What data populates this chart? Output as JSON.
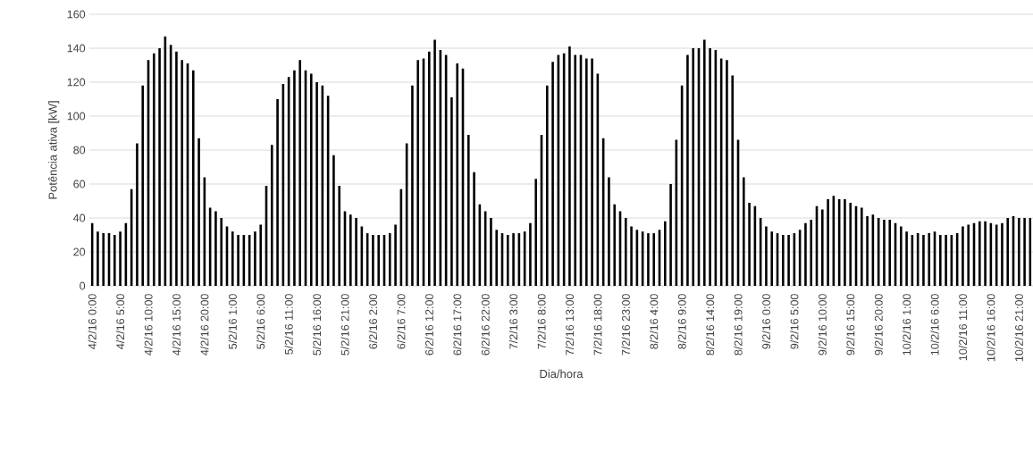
{
  "chart_data": {
    "type": "bar",
    "xlabel": "Dia/hora",
    "ylabel": "Potência ativa [kW]",
    "categories": [
      "4/2/16 0:00",
      null,
      null,
      null,
      null,
      "4/2/16 5:00",
      null,
      null,
      null,
      null,
      "4/2/16 10:00",
      null,
      null,
      null,
      null,
      "4/2/16 15:00",
      null,
      null,
      null,
      null,
      "4/2/16 20:00",
      null,
      null,
      null,
      null,
      "5/2/16 1:00",
      null,
      null,
      null,
      null,
      "5/2/16 6:00",
      null,
      null,
      null,
      null,
      "5/2/16 11:00",
      null,
      null,
      null,
      null,
      "5/2/16 16:00",
      null,
      null,
      null,
      null,
      "5/2/16 21:00",
      null,
      null,
      null,
      null,
      "6/2/16 2:00",
      null,
      null,
      null,
      null,
      "6/2/16 7:00",
      null,
      null,
      null,
      null,
      "6/2/16 12:00",
      null,
      null,
      null,
      null,
      "6/2/16 17:00",
      null,
      null,
      null,
      null,
      "6/2/16 22:00",
      null,
      null,
      null,
      null,
      "7/2/16 3:00",
      null,
      null,
      null,
      null,
      "7/2/16 8:00",
      null,
      null,
      null,
      null,
      "7/2/16 13:00",
      null,
      null,
      null,
      null,
      "7/2/16 18:00",
      null,
      null,
      null,
      null,
      "7/2/16 23:00",
      null,
      null,
      null,
      null,
      "8/2/16 4:00",
      null,
      null,
      null,
      null,
      "8/2/16 9:00",
      null,
      null,
      null,
      null,
      "8/2/16 14:00",
      null,
      null,
      null,
      null,
      "8/2/16 19:00",
      null,
      null,
      null,
      null,
      "9/2/16 0:00",
      null,
      null,
      null,
      null,
      "9/2/16 5:00",
      null,
      null,
      null,
      null,
      "9/2/16 10:00",
      null,
      null,
      null,
      null,
      "9/2/16 15:00",
      null,
      null,
      null,
      null,
      "9/2/16 20:00",
      null,
      null,
      null,
      null,
      "10/2/16 1:00",
      null,
      null,
      null,
      null,
      "10/2/16 6:00",
      null,
      null,
      null,
      null,
      "10/2/16 11:00",
      null,
      null,
      null,
      null,
      "10/2/16 16:00",
      null,
      null,
      null,
      null,
      "10/2/16 21:00",
      null,
      null
    ],
    "values": [
      37,
      32,
      31,
      31,
      30,
      32,
      37,
      57,
      84,
      118,
      133,
      137,
      140,
      147,
      142,
      138,
      133,
      131,
      127,
      87,
      64,
      46,
      44,
      40,
      35,
      32,
      30,
      30,
      30,
      32,
      36,
      59,
      83,
      110,
      119,
      123,
      127,
      133,
      127,
      125,
      120,
      118,
      112,
      77,
      59,
      44,
      42,
      40,
      35,
      31,
      30,
      30,
      30,
      31,
      36,
      57,
      84,
      118,
      133,
      134,
      138,
      145,
      139,
      136,
      111,
      131,
      128,
      89,
      67,
      48,
      44,
      40,
      33,
      31,
      30,
      31,
      31,
      32,
      37,
      63,
      89,
      118,
      132,
      136,
      137,
      141,
      136,
      136,
      134,
      134,
      125,
      87,
      64,
      48,
      44,
      40,
      35,
      33,
      32,
      31,
      31,
      33,
      38,
      60,
      86,
      118,
      136,
      140,
      140,
      145,
      140,
      139,
      134,
      133,
      124,
      86,
      64,
      49,
      47,
      40,
      35,
      32,
      31,
      30,
      30,
      31,
      33,
      37,
      39,
      47,
      45,
      51,
      53,
      51,
      51,
      49,
      47,
      46,
      41,
      42,
      40,
      39,
      39,
      37,
      35,
      32,
      30,
      31,
      30,
      31,
      32,
      30,
      30,
      30,
      31,
      35,
      36,
      37,
      38,
      38,
      37,
      36,
      37,
      40,
      41,
      40,
      40,
      40
    ],
    "color": "#000000",
    "ylim": [
      0,
      160
    ],
    "yticks": [
      0,
      20,
      40,
      60,
      80,
      100,
      120,
      140,
      160
    ],
    "grid": "y"
  }
}
